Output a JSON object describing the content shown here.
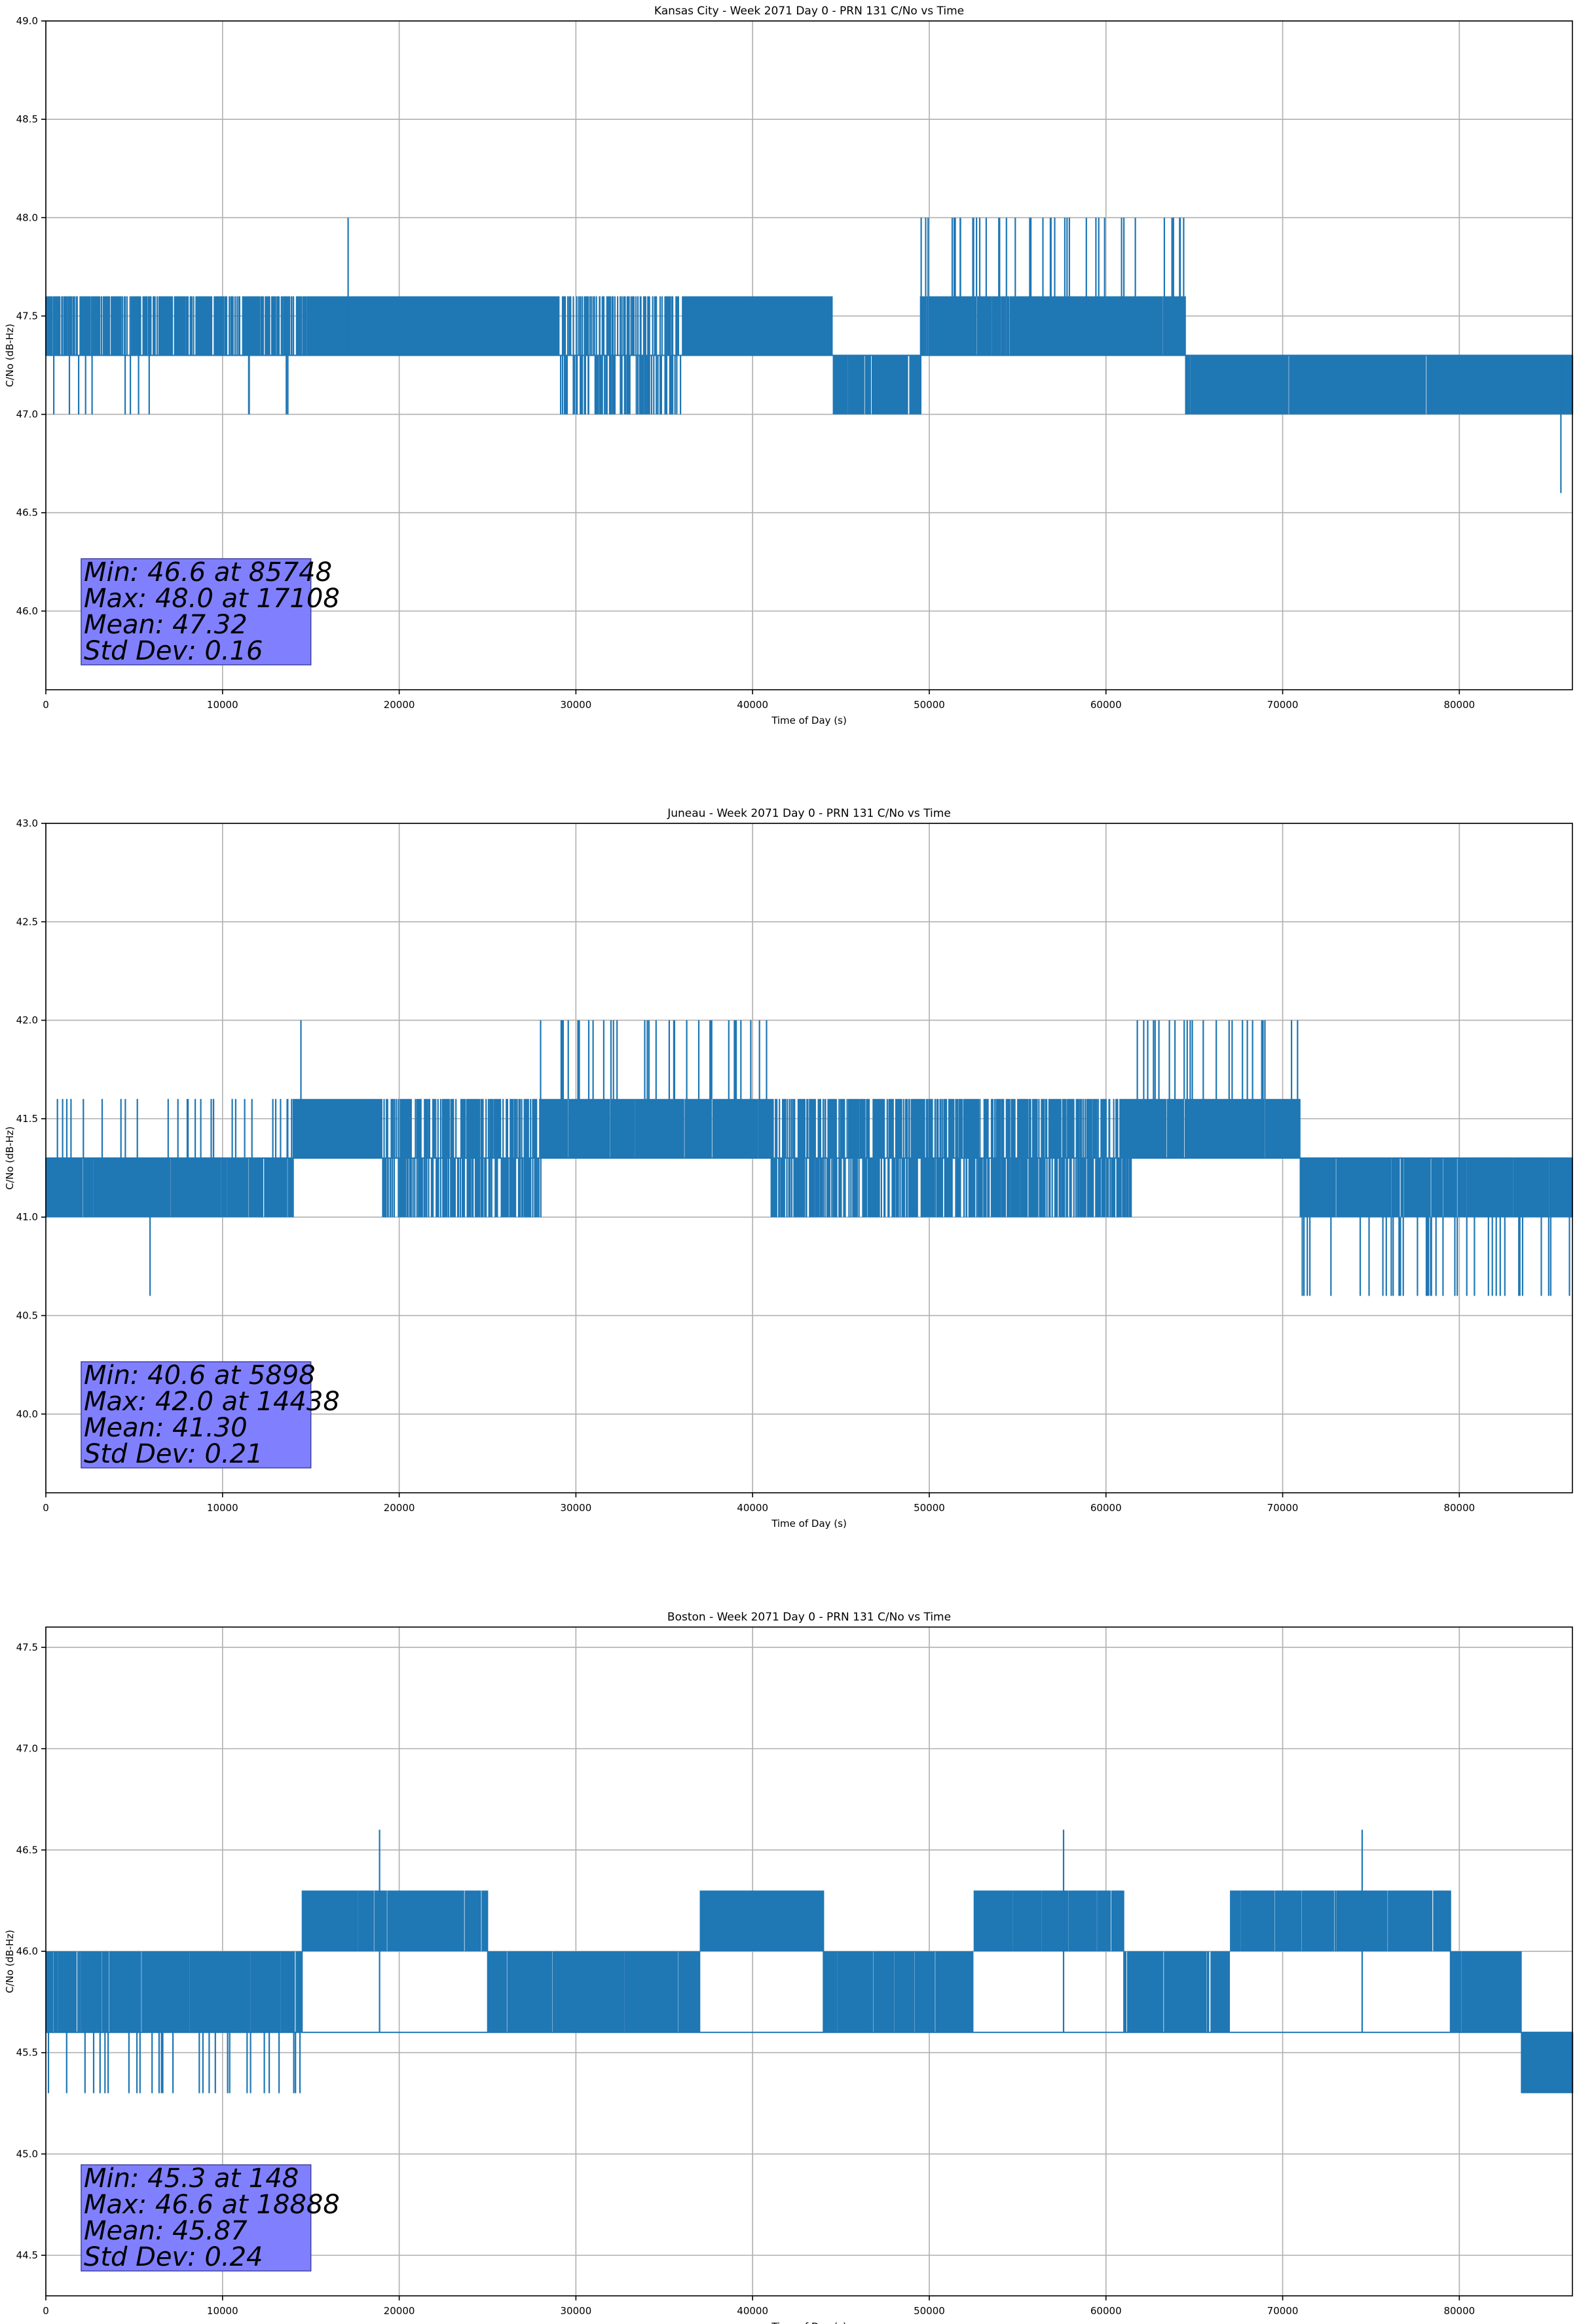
{
  "chart_data": [
    {
      "type": "line",
      "title": "Kansas City - Week 2071 Day 0 - PRN 131 C/No vs Time",
      "xlabel": "Time of Day (s)",
      "ylabel": "C/No (dB-Hz)",
      "xlim": [
        0,
        86400
      ],
      "ylim": [
        45.6,
        49.0
      ],
      "xticks": [
        0,
        10000,
        20000,
        30000,
        40000,
        50000,
        60000,
        70000,
        80000
      ],
      "yticks": [
        46.0,
        46.5,
        47.0,
        47.5,
        48.0,
        48.5,
        49.0
      ],
      "grid": true,
      "line_color": "#1f77b4",
      "baseline": 47.3,
      "levels": [
        47.0,
        47.3,
        47.6,
        48.0
      ],
      "segments": [
        {
          "x": [
            0,
            15000
          ],
          "dominant": [
            47.3,
            47.6
          ],
          "density": 0.55,
          "lower": 47.0
        },
        {
          "x": [
            15000,
            29000
          ],
          "dominant": [
            47.3,
            47.6
          ],
          "density": 0.9
        },
        {
          "x": [
            29000,
            36000
          ],
          "dominant": [
            47.0,
            47.3,
            47.6
          ],
          "density": 0.5
        },
        {
          "x": [
            36000,
            44500
          ],
          "dominant": [
            47.3,
            47.6
          ],
          "density": 0.9
        },
        {
          "x": [
            44500,
            49500
          ],
          "dominant": [
            47.0,
            47.3
          ],
          "density": 0.8
        },
        {
          "x": [
            49500,
            64500
          ],
          "dominant": [
            47.3,
            47.6
          ],
          "density": 0.85,
          "upper": 48.0
        },
        {
          "x": [
            64500,
            86400
          ],
          "dominant": [
            47.0,
            47.3
          ],
          "density": 0.9
        }
      ],
      "spikes": [
        {
          "x": 17108,
          "y": 48.0
        },
        {
          "x": 85748,
          "y": 46.6
        }
      ],
      "stats": {
        "min": "Min: 46.6 at 85748",
        "max": "Max: 48.0 at 17108",
        "mean": "Mean: 47.32",
        "std": "Std Dev: 0.16"
      }
    },
    {
      "type": "line",
      "title": "Juneau - Week 2071 Day 0 - PRN 131 C/No vs Time",
      "xlabel": "Time of Day (s)",
      "ylabel": "C/No (dB-Hz)",
      "xlim": [
        0,
        86400
      ],
      "ylim": [
        39.6,
        43.0
      ],
      "xticks": [
        0,
        10000,
        20000,
        30000,
        40000,
        50000,
        60000,
        70000,
        80000
      ],
      "yticks": [
        40.0,
        40.5,
        41.0,
        41.5,
        42.0,
        42.5,
        43.0
      ],
      "grid": true,
      "line_color": "#1f77b4",
      "baseline": 41.3,
      "levels": [
        40.6,
        41.0,
        41.3,
        41.6,
        42.0
      ],
      "segments": [
        {
          "x": [
            0,
            14000
          ],
          "dominant": [
            41.0,
            41.3
          ],
          "density": 0.8,
          "upper": 41.6
        },
        {
          "x": [
            14000,
            19000
          ],
          "dominant": [
            41.3,
            41.6
          ],
          "density": 0.9
        },
        {
          "x": [
            19000,
            28000
          ],
          "dominant": [
            41.0,
            41.3,
            41.6
          ],
          "density": 0.6
        },
        {
          "x": [
            28000,
            41000
          ],
          "dominant": [
            41.3,
            41.6
          ],
          "density": 0.85,
          "upper": 42.0
        },
        {
          "x": [
            41000,
            61500
          ],
          "dominant": [
            41.0,
            41.3,
            41.6
          ],
          "density": 0.7
        },
        {
          "x": [
            61500,
            71000
          ],
          "dominant": [
            41.3,
            41.6
          ],
          "density": 0.9,
          "upper": 42.0
        },
        {
          "x": [
            71000,
            86400
          ],
          "dominant": [
            41.0,
            41.3
          ],
          "density": 0.85,
          "lower": 40.6
        }
      ],
      "spikes": [
        {
          "x": 5898,
          "y": 40.6
        },
        {
          "x": 14438,
          "y": 42.0
        }
      ],
      "stats": {
        "min": "Min: 40.6 at 5898",
        "max": "Max: 42.0 at 14438",
        "mean": "Mean: 41.30",
        "std": "Std Dev: 0.21"
      }
    },
    {
      "type": "line",
      "title": "Boston - Week 2071 Day 0 - PRN 131 C/No vs Time",
      "xlabel": "Time of Day (s)",
      "ylabel": "C/No (dB-Hz)",
      "xlim": [
        0,
        86400
      ],
      "ylim": [
        44.3,
        47.6
      ],
      "xticks": [
        0,
        10000,
        20000,
        30000,
        40000,
        50000,
        60000,
        70000,
        80000
      ],
      "yticks": [
        44.5,
        45.0,
        45.5,
        46.0,
        46.5,
        47.0,
        47.5
      ],
      "grid": true,
      "line_color": "#1f77b4",
      "baseline": 45.6,
      "levels": [
        45.3,
        45.6,
        46.0,
        46.3,
        46.6
      ],
      "segments": [
        {
          "x": [
            0,
            14500
          ],
          "dominant": [
            45.6,
            46.0
          ],
          "density": 0.75,
          "lower": 45.3
        },
        {
          "x": [
            14500,
            25000
          ],
          "dominant": [
            46.0,
            46.3
          ],
          "density": 0.85
        },
        {
          "x": [
            25000,
            37000
          ],
          "dominant": [
            45.6,
            46.0
          ],
          "density": 0.8
        },
        {
          "x": [
            37000,
            44000
          ],
          "dominant": [
            46.0,
            46.3
          ],
          "density": 0.9
        },
        {
          "x": [
            44000,
            52500
          ],
          "dominant": [
            45.6,
            46.0
          ],
          "density": 0.8
        },
        {
          "x": [
            52500,
            61000
          ],
          "dominant": [
            46.0,
            46.3
          ],
          "density": 0.85
        },
        {
          "x": [
            61000,
            67000
          ],
          "dominant": [
            45.6,
            46.0
          ],
          "density": 0.75
        },
        {
          "x": [
            67000,
            79500
          ],
          "dominant": [
            46.0,
            46.3
          ],
          "density": 0.85
        },
        {
          "x": [
            79500,
            83500
          ],
          "dominant": [
            45.6,
            46.0
          ],
          "density": 0.9
        },
        {
          "x": [
            83500,
            86400
          ],
          "dominant": [
            45.3,
            45.6
          ],
          "density": 0.9
        }
      ],
      "spikes": [
        {
          "x": 148,
          "y": 45.3
        },
        {
          "x": 18888,
          "y": 46.6
        },
        {
          "x": 57600,
          "y": 46.6
        },
        {
          "x": 74500,
          "y": 46.6
        }
      ],
      "stats": {
        "min": "Min: 45.3 at 148",
        "max": "Max: 46.6 at 18888",
        "mean": "Mean: 45.87",
        "std": "Std Dev: 0.24"
      }
    }
  ]
}
